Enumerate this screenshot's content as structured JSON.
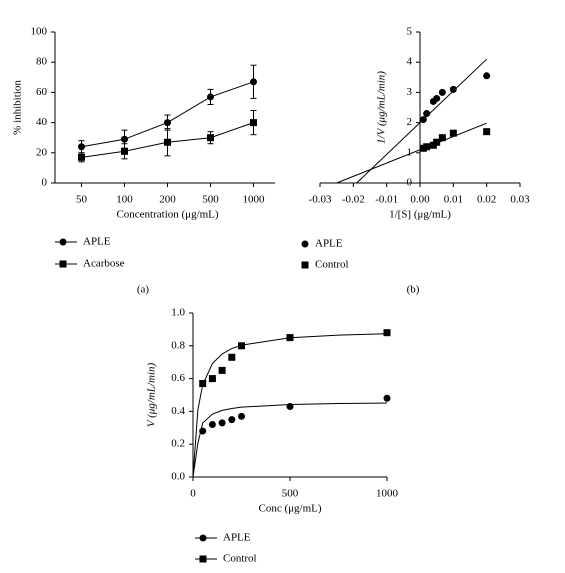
{
  "chart_data": [
    {
      "type": "line",
      "panel": "(a)",
      "xlabel": "Concentration (μg/mL)",
      "ylabel": "% inhibition",
      "categories": [
        "50",
        "100",
        "200",
        "500",
        "1000"
      ],
      "series": [
        {
          "name": "APLE",
          "color": "#000000",
          "marker": "circle",
          "values": [
            24,
            29,
            40,
            57,
            67
          ],
          "errors": [
            4,
            6,
            5,
            5,
            11
          ]
        },
        {
          "name": "Acarbose",
          "color": "#000000",
          "marker": "square",
          "values": [
            17,
            21,
            27,
            30,
            40
          ],
          "errors": [
            3,
            5,
            9,
            4,
            8
          ]
        }
      ],
      "ylim": [
        0,
        100
      ],
      "yticks": [
        0,
        20,
        40,
        60,
        80,
        100
      ],
      "legend": "below",
      "legend_style": "line"
    },
    {
      "type": "scatter",
      "panel": "(b)",
      "xlabel": "1/[S] (μg/mL)",
      "ylabel": "1/V (μg/mL/min)",
      "xlim": [
        -0.03,
        0.03
      ],
      "xticks": [
        -0.03,
        -0.02,
        -0.01,
        {
          "value": 0,
          "label": "0.00"
        },
        0.01,
        0.02,
        0.03
      ],
      "ylim": [
        0,
        5
      ],
      "yticks": [
        0,
        1,
        2,
        3,
        4,
        5
      ],
      "series": [
        {
          "name": "APLE",
          "color": "#000000",
          "marker": "circle",
          "x": [
            0.001,
            0.002,
            0.004,
            0.005,
            0.0067,
            0.01,
            0.02
          ],
          "values": [
            2.1,
            2.3,
            2.7,
            2.8,
            3.0,
            3.1,
            3.55
          ],
          "fit_x": [
            -0.019,
            0.02
          ],
          "fit_values": [
            0,
            4.1
          ]
        },
        {
          "name": "Control",
          "color": "#000000",
          "marker": "square",
          "x": [
            0.001,
            0.002,
            0.004,
            0.005,
            0.0067,
            0.01,
            0.02
          ],
          "values": [
            1.15,
            1.2,
            1.25,
            1.35,
            1.5,
            1.65,
            1.7
          ],
          "fit_x": [
            -0.025,
            0.02
          ],
          "fit_values": [
            0,
            1.98
          ]
        }
      ],
      "legend": "below",
      "legend_style": "marker"
    },
    {
      "type": "scatter",
      "xlabel": "Conc (μg/mL)",
      "ylabel": "V (μg/mL/min)",
      "xlim": [
        0,
        1000
      ],
      "xticks": [
        0,
        500,
        1000
      ],
      "ylim": [
        0,
        1
      ],
      "yticks": [
        {
          "value": 0,
          "label": "0.0"
        },
        0.2,
        0.4,
        0.6,
        0.8,
        {
          "value": 1,
          "label": "1.0"
        }
      ],
      "series": [
        {
          "name": "APLE",
          "color": "#000000",
          "marker": "circle",
          "x": [
            50,
            100,
            150,
            200,
            250,
            500,
            1000
          ],
          "values": [
            0.28,
            0.32,
            0.33,
            0.35,
            0.37,
            0.43,
            0.48
          ],
          "fit_x": [
            0,
            25,
            50,
            100,
            150,
            200,
            250,
            500,
            750,
            1000
          ],
          "fit_values": [
            0,
            0.204,
            0.329,
            0.383,
            0.406,
            0.418,
            0.426,
            0.442,
            0.448,
            0.451
          ]
        },
        {
          "name": "Control",
          "color": "#000000",
          "marker": "square",
          "x": [
            50,
            100,
            150,
            200,
            250,
            500,
            1000
          ],
          "values": [
            0.57,
            0.6,
            0.65,
            0.73,
            0.8,
            0.85,
            0.88
          ],
          "fit_x": [
            0,
            25,
            50,
            100,
            150,
            200,
            250,
            500,
            750,
            1000
          ],
          "fit_values": [
            0,
            0.409,
            0.5625,
            0.692,
            0.75,
            0.783,
            0.804,
            0.849,
            0.865,
            0.874
          ]
        }
      ],
      "legend": "below",
      "legend_style": "line"
    }
  ]
}
